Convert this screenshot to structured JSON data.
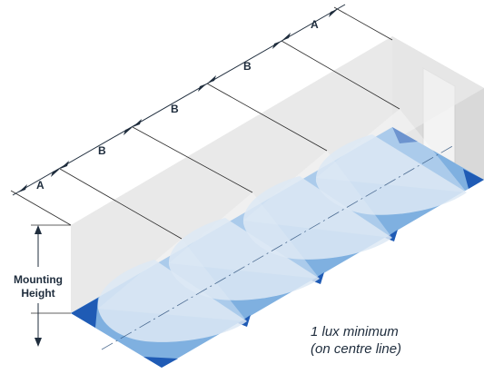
{
  "spacing_labels": {
    "end_left": "A",
    "mid_1": "B",
    "mid_2": "B",
    "mid_3": "B",
    "end_right": "A"
  },
  "mounting_height": {
    "line1": "Mounting",
    "line2": "Height"
  },
  "note": {
    "line1": "1 lux minimum",
    "line2": "(on centre line)"
  },
  "colors": {
    "floor": "#7fb0e0",
    "floor_edge": "#1f5bb5",
    "light_pool": "#dde9f5",
    "wall": "#ececec",
    "back_wall": "#d6d6d6",
    "text": "#1f2d3d"
  }
}
